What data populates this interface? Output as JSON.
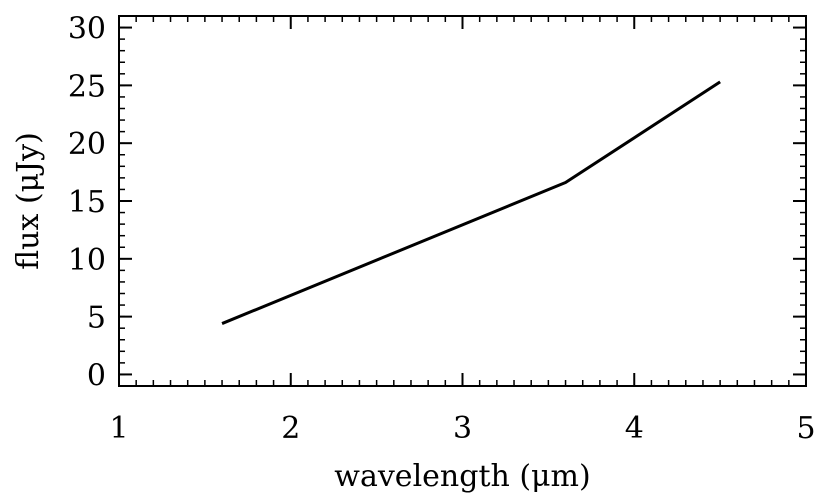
{
  "chart_data": {
    "type": "line",
    "title": "",
    "xlabel": "wavelength (μm)",
    "ylabel": "flux (μJy)",
    "xlim": [
      1,
      5
    ],
    "ylim": [
      -1,
      31
    ],
    "x_ticks": [
      1,
      2,
      3,
      4,
      5
    ],
    "y_ticks": [
      0,
      5,
      10,
      15,
      20,
      25,
      30
    ],
    "x_tick_labels": [
      "1",
      "2",
      "3",
      "4",
      "5"
    ],
    "y_tick_labels": [
      "0",
      "5",
      "10",
      "15",
      "20",
      "25",
      "30"
    ],
    "grid": false,
    "line_color": "#000000",
    "series": [
      {
        "x": [
          1.6,
          3.6,
          4.5
        ],
        "y": [
          4.4,
          16.6,
          25.3
        ]
      }
    ]
  }
}
